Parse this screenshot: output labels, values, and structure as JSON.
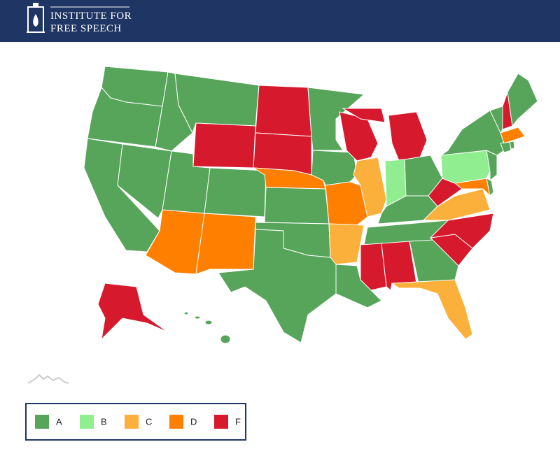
{
  "header": {
    "title_line1": "INSTITUTE FOR",
    "title_line2": "FREE SPEECH"
  },
  "legend": {
    "items": [
      {
        "label": "A",
        "color": "#57a55a"
      },
      {
        "label": "B",
        "color": "#90ee90"
      },
      {
        "label": "C",
        "color": "#fbb03b"
      },
      {
        "label": "D",
        "color": "#ff7f00"
      },
      {
        "label": "F",
        "color": "#d7192d"
      }
    ]
  }
}
